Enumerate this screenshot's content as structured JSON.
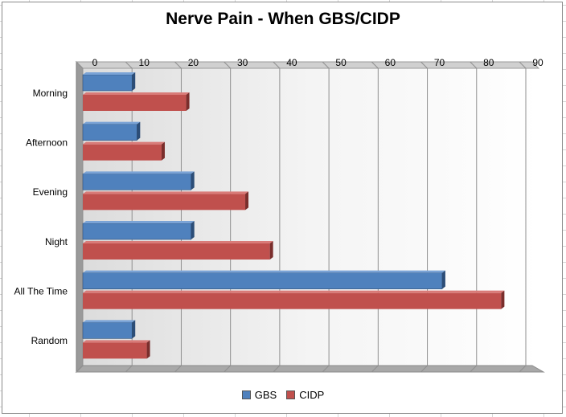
{
  "chart_data": {
    "type": "bar",
    "orientation": "horizontal",
    "title": "Nerve Pain - When GBS/CIDP",
    "categories": [
      "Morning",
      "Afternoon",
      "Evening",
      "Night",
      "All The Time",
      "Random"
    ],
    "series": [
      {
        "name": "GBS",
        "color": "#4f81bd",
        "values": [
          10,
          11,
          22,
          22,
          73,
          10
        ]
      },
      {
        "name": "CIDP",
        "color": "#c0504d",
        "values": [
          21,
          16,
          33,
          38,
          85,
          13
        ]
      }
    ],
    "xlim": [
      0,
      90
    ],
    "xticks": [
      "0",
      "10",
      "20",
      "30",
      "40",
      "50",
      "60",
      "70",
      "80",
      "90"
    ],
    "axis_position": "top",
    "legend_position": "bottom",
    "style": "3d-clustered-bar"
  }
}
